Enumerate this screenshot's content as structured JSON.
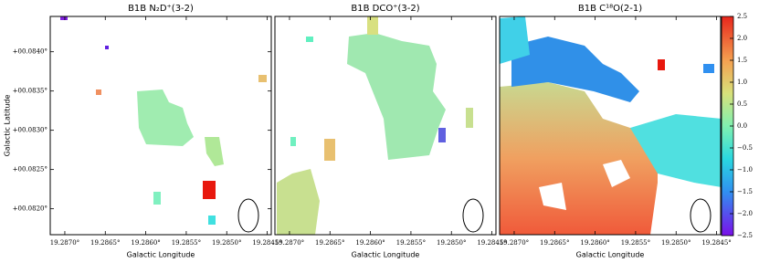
{
  "chart_data": [
    {
      "type": "heatmap",
      "title": "B1B N₂D⁺(3-2)",
      "xlabel": "Galactic Longitude",
      "ylabel": "Galactic Latitude",
      "xlim": [
        19.28718,
        19.28445
      ],
      "ylim": [
        0.08167,
        0.08445
      ],
      "xticks": [
        {
          "value": 19.287,
          "label": "19.2870°"
        },
        {
          "value": 19.2865,
          "label": "19.2865°"
        },
        {
          "value": 19.286,
          "label": "19.2860°"
        },
        {
          "value": 19.2855,
          "label": "19.2855°"
        },
        {
          "value": 19.285,
          "label": "19.2850°"
        },
        {
          "value": 19.2845,
          "label": "19.2845°"
        }
      ],
      "yticks": [
        {
          "value": 0.084,
          "label": "+00.0840°"
        },
        {
          "value": 0.0835,
          "label": "+00.0835°"
        },
        {
          "value": 0.083,
          "label": "+00.0830°"
        },
        {
          "value": 0.0825,
          "label": "+00.0825°"
        },
        {
          "value": 0.082,
          "label": "+00.0820°"
        }
      ]
    },
    {
      "type": "heatmap",
      "title": "B1B DCO⁺(3-2)",
      "xlabel": "Galactic Longitude",
      "xlim": [
        19.28718,
        19.28445
      ],
      "ylim": [
        0.08167,
        0.08445
      ],
      "xticks": [
        {
          "value": 19.287,
          "label": "19.2870°"
        },
        {
          "value": 19.2865,
          "label": "19.2865°"
        },
        {
          "value": 19.286,
          "label": "19.2860°"
        },
        {
          "value": 19.2855,
          "label": "19.2855°"
        },
        {
          "value": 19.285,
          "label": "19.2850°"
        },
        {
          "value": 19.2845,
          "label": "19.2845°"
        }
      ]
    },
    {
      "type": "heatmap",
      "title": "B1B C¹⁸O(2-1)",
      "xlabel": "Galactic Longitude",
      "xlim": [
        19.28718,
        19.28445
      ],
      "ylim": [
        0.08167,
        0.08445
      ],
      "xticks": [
        {
          "value": 19.287,
          "label": "19.2870°"
        },
        {
          "value": 19.2865,
          "label": "19.2865°"
        },
        {
          "value": 19.286,
          "label": "19.2860°"
        },
        {
          "value": 19.2855,
          "label": "19.2855°"
        },
        {
          "value": 19.285,
          "label": "19.2850°"
        },
        {
          "value": 19.2845,
          "label": "19.2845°"
        }
      ]
    }
  ],
  "colorbar": {
    "lim": [
      -2.5,
      2.5
    ],
    "ticks": [
      {
        "value": 2.5,
        "label": "2.5"
      },
      {
        "value": 2,
        "label": "2.0"
      },
      {
        "value": 1.5,
        "label": "1.5"
      },
      {
        "value": 1,
        "label": "1.0"
      },
      {
        "value": 0.5,
        "label": "0.5"
      },
      {
        "value": 0,
        "label": "0.0"
      },
      {
        "value": -0.5,
        "label": "−0.5"
      },
      {
        "value": -1,
        "label": "−1.0"
      },
      {
        "value": -1.5,
        "label": "−1.5"
      },
      {
        "value": -2,
        "label": "−2.0"
      },
      {
        "value": -2.5,
        "label": "−2.5"
      }
    ]
  }
}
